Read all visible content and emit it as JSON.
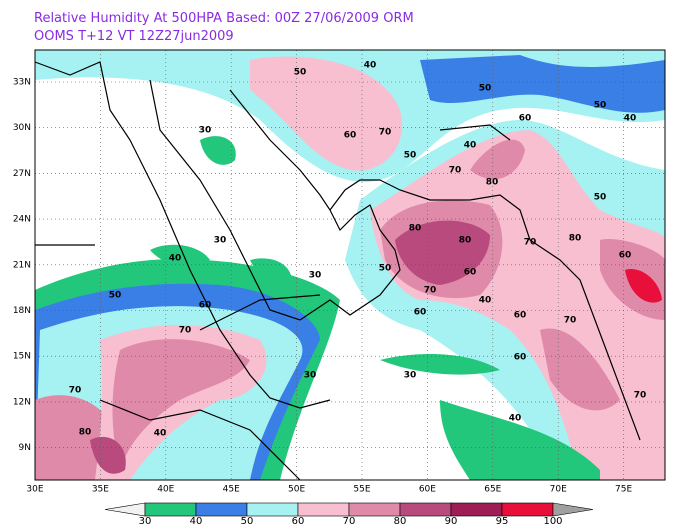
{
  "header": {
    "line1": "Relative Humidity At 500HPA   Based: 00Z  27/06/2009  ORM",
    "line2": "OOMS  T+12 VT 12Z27jun2009"
  },
  "lat_labels": [
    "33N",
    "30N",
    "27N",
    "24N",
    "21N",
    "18N",
    "15N",
    "12N",
    "9N"
  ],
  "lon_labels": [
    "30E",
    "35E",
    "40E",
    "45E",
    "50E",
    "55E",
    "60E",
    "65E",
    "70E",
    "75E"
  ],
  "colorbar": {
    "levels": [
      30,
      40,
      50,
      60,
      70,
      80,
      90,
      95,
      100
    ],
    "colors": [
      "#f2f2f2",
      "#22c77c",
      "#3a7fe6",
      "#a6f2f2",
      "#f7bfd0",
      "#e08aaa",
      "#b84a7e",
      "#9e1d55",
      "#e8103a",
      "#a0a0a0"
    ]
  },
  "contour_labels": [
    30,
    50,
    40,
    50,
    60,
    70,
    50,
    70,
    80,
    60,
    50,
    40,
    80,
    80,
    60,
    70,
    50,
    60,
    70,
    80,
    30,
    50,
    40,
    70,
    60,
    30,
    70,
    80,
    40,
    70,
    60,
    50,
    40,
    60,
    40,
    30,
    70,
    60,
    40,
    30
  ]
}
